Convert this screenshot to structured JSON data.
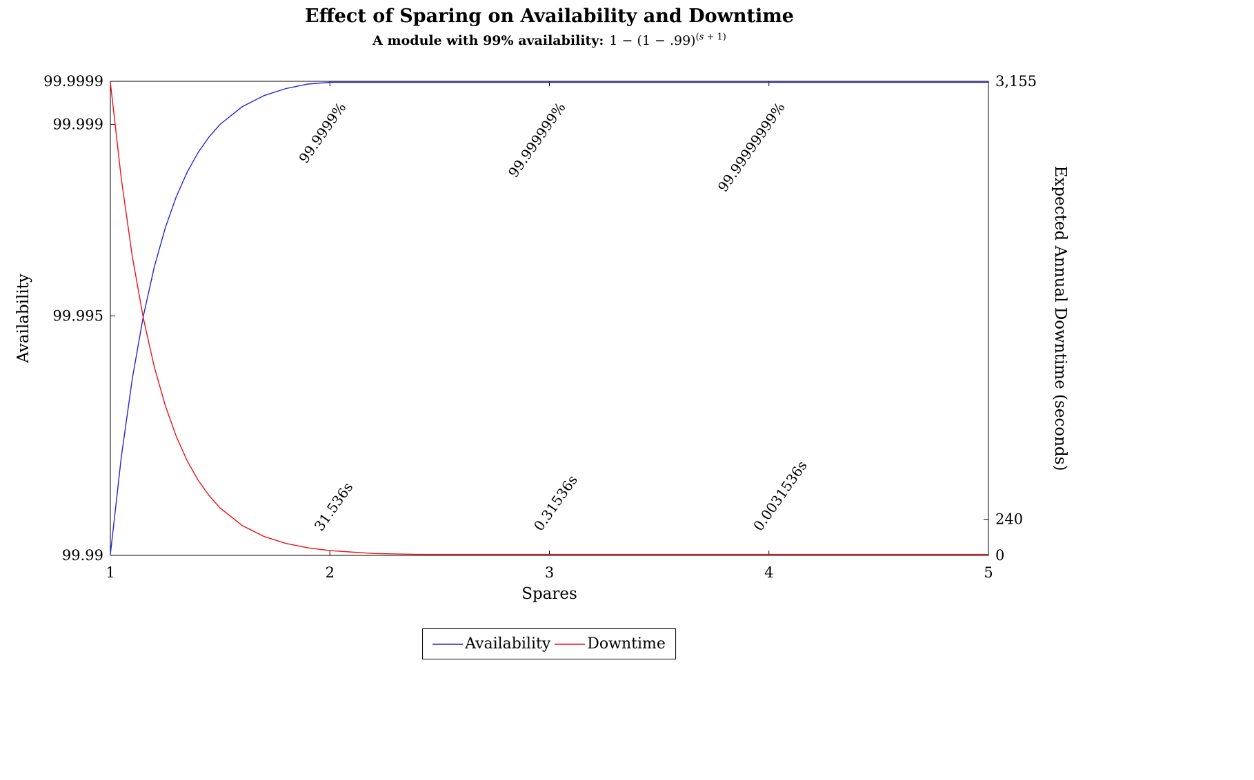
{
  "chart_data": {
    "type": "line",
    "title": "Effect of Sparing on Availability and Downtime",
    "subtitle_prefix": "A module with 99% availability:",
    "formula_base": "1 − (1 − .99)",
    "formula_exp_open": "(",
    "formula_exp_var": "s",
    "formula_exp_rest": " + 1)",
    "x_axis": {
      "label": "Spares",
      "min": 1,
      "max": 5,
      "ticks": [
        {
          "value": 1,
          "label": "1"
        },
        {
          "value": 2,
          "label": "2"
        },
        {
          "value": 3,
          "label": "3"
        },
        {
          "value": 4,
          "label": "4"
        },
        {
          "value": 5,
          "label": "5"
        }
      ]
    },
    "y_left": {
      "label": "Availability",
      "min": 99.99,
      "max": 99.9999,
      "ticks": [
        {
          "value": 99.99,
          "label": "99.99"
        },
        {
          "value": 99.995,
          "label": "99.995"
        },
        {
          "value": 99.999,
          "label": "99.999"
        },
        {
          "value": 99.9999,
          "label": "99.9999"
        }
      ]
    },
    "y_right": {
      "label": "Expected Annual Downtime (seconds)",
      "min": 0,
      "max": 3155,
      "ticks": [
        {
          "value": 0,
          "label": "0"
        },
        {
          "value": 240,
          "label": "240"
        },
        {
          "value": 3155,
          "label": "3,155"
        }
      ]
    },
    "series": [
      {
        "name": "Availability",
        "axis": "left",
        "color": "#2222dd",
        "x": [
          1,
          1.05,
          1.1,
          1.15,
          1.2,
          1.25,
          1.3,
          1.35,
          1.4,
          1.45,
          1.5,
          1.6,
          1.7,
          1.8,
          1.9,
          2,
          2.2,
          2.4,
          2.6,
          2.8,
          3,
          3.5,
          4,
          4.5,
          5
        ],
        "y": [
          99.99,
          99.992057,
          99.99369,
          99.994988,
          99.996019,
          99.996838,
          99.997488,
          99.998005,
          99.998415,
          99.998741,
          99.999,
          99.999369,
          99.999602,
          99.999749,
          99.999842,
          99.9999,
          99.99996,
          99.999984,
          99.999994,
          99.999997,
          99.999999,
          99.9999999,
          99.99999999,
          99.999999999,
          99.9999999999
        ]
      },
      {
        "name": "Downtime",
        "axis": "right",
        "color": "#ee1111",
        "x": [
          1,
          1.05,
          1.1,
          1.15,
          1.2,
          1.25,
          1.3,
          1.35,
          1.4,
          1.45,
          1.5,
          1.6,
          1.7,
          1.8,
          1.9,
          2,
          2.2,
          2.4,
          2.6,
          2.8,
          3,
          3.5,
          4,
          4.5,
          5
        ],
        "y": [
          3153.6,
          2505,
          1989.8,
          1580.6,
          1255.5,
          997.2,
          792.1,
          629.2,
          499.8,
          397,
          315.36,
          198.98,
          125.55,
          79.22,
          49.98,
          31.536,
          12.56,
          5,
          1.99,
          0.79,
          0.315,
          0.0315,
          0.00315,
          0.000315,
          3.15e-05
        ]
      }
    ],
    "annotations": [
      {
        "text": "99.9999%",
        "x": 2,
        "series": "availability"
      },
      {
        "text": "99.999999%",
        "x": 3,
        "series": "availability"
      },
      {
        "text": "99.99999999%",
        "x": 4,
        "series": "availability"
      },
      {
        "text": "31.536s",
        "x": 2,
        "series": "downtime"
      },
      {
        "text": "0.31536s",
        "x": 3,
        "series": "downtime"
      },
      {
        "text": "0.0031536s",
        "x": 4,
        "series": "downtime"
      }
    ]
  }
}
